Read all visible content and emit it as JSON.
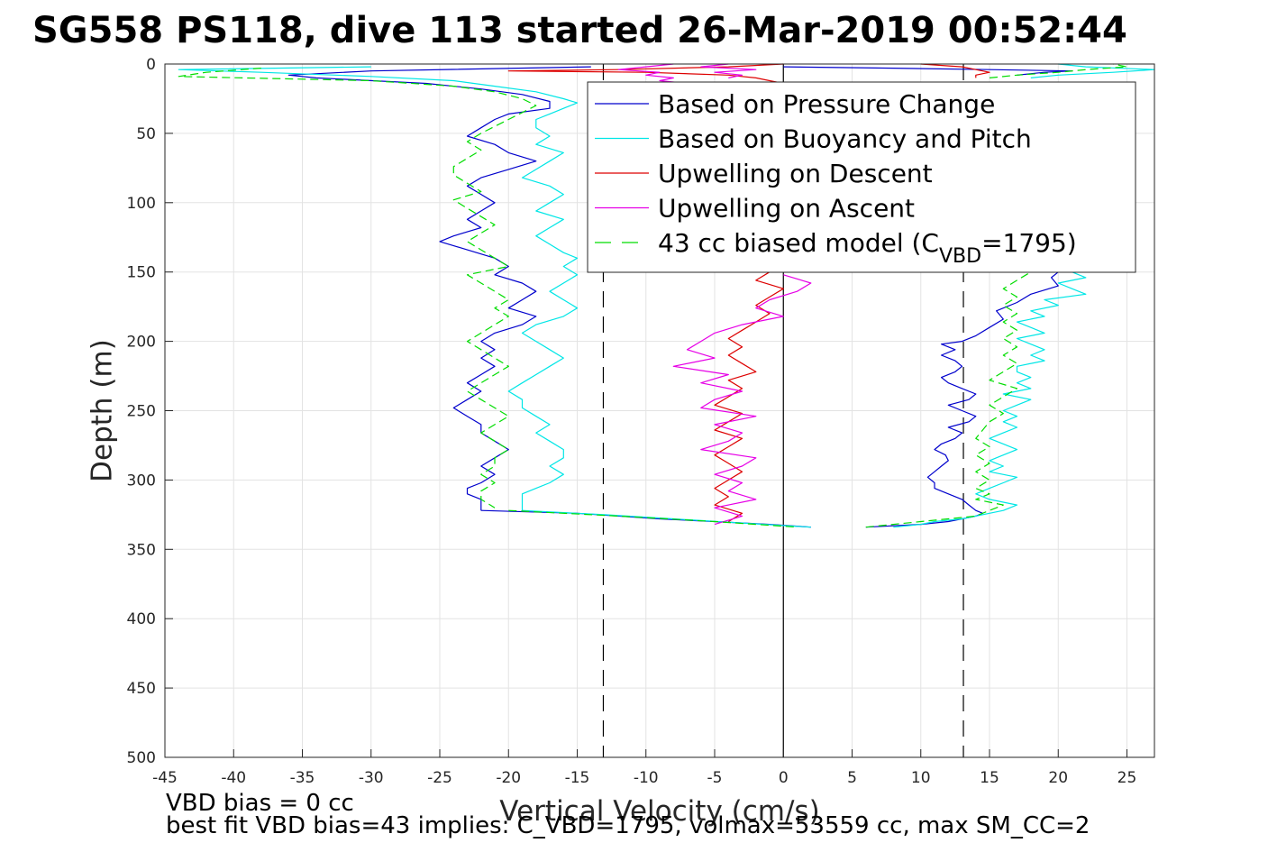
{
  "chart_data": {
    "type": "line",
    "title": "SG558 PS118, dive 113 started 26-Mar-2019 00:52:44",
    "xlabel": "Vertical Velocity (cm/s)",
    "ylabel": "Depth (m)",
    "xlim": [
      -45,
      27
    ],
    "ylim": [
      0,
      500
    ],
    "y_reversed": true,
    "grid": true,
    "legend_position": "top-right",
    "xticks": [
      -45,
      -40,
      -35,
      -30,
      -25,
      -20,
      -15,
      -10,
      -5,
      0,
      5,
      10,
      15,
      20,
      25
    ],
    "yticks": [
      0,
      50,
      100,
      150,
      200,
      250,
      300,
      350,
      400,
      450,
      500
    ],
    "reference_lines": [
      {
        "x": -13.1,
        "style": "dashed",
        "color": "#000000"
      },
      {
        "x": 0,
        "style": "solid",
        "color": "#000000"
      },
      {
        "x": 13.1,
        "style": "dashed",
        "color": "#000000"
      }
    ],
    "series": [
      {
        "name": "Based on Pressure Change",
        "color": "#0000cc",
        "dash": "solid",
        "descent": {
          "depth": [
            2,
            5,
            8,
            10,
            14,
            18,
            22,
            27,
            32,
            36,
            40,
            46,
            52,
            58,
            64,
            70,
            76,
            82,
            88,
            94,
            100,
            106,
            112,
            118,
            124,
            128,
            134,
            140,
            146,
            152,
            158,
            164,
            170,
            176,
            182,
            188,
            194,
            200,
            206,
            212,
            218,
            224,
            230,
            236,
            242,
            248,
            254,
            260,
            266,
            272,
            278,
            284,
            290,
            296,
            302,
            306,
            310,
            314,
            318,
            322
          ],
          "v": [
            -14,
            -30,
            -36,
            -34,
            -26,
            -22,
            -19,
            -17,
            -17,
            -20,
            -21,
            -22,
            -23,
            -21,
            -20,
            -18,
            -20,
            -22,
            -23,
            -22,
            -21,
            -22,
            -23,
            -22,
            -24,
            -25,
            -23,
            -21,
            -20,
            -21,
            -19,
            -18,
            -19,
            -20,
            -18,
            -19,
            -21,
            -22,
            -21,
            -22,
            -21,
            -22,
            -23,
            -22,
            -23,
            -24,
            -23,
            -22,
            -22,
            -21,
            -20,
            -21,
            -22,
            -21,
            -22,
            -23,
            -23,
            -22,
            -22,
            -22
          ]
        },
        "bottom": {
          "depth": [
            322,
            324,
            326,
            328,
            330,
            332,
            334
          ],
          "v": [
            -22,
            -15,
            -12,
            -9,
            -5,
            -1,
            2
          ]
        },
        "ascent": {
          "depth": [
            334,
            332,
            330,
            328,
            326,
            324,
            322,
            318,
            314,
            310,
            306,
            302,
            298,
            294,
            290,
            286,
            282,
            278,
            274,
            270,
            266,
            262,
            258,
            254,
            250,
            246,
            242,
            238,
            234,
            230,
            226,
            222,
            218,
            214,
            210,
            206,
            202,
            200,
            196,
            190,
            184,
            178,
            172,
            166,
            160,
            154,
            150
          ],
          "v": [
            6,
            10,
            12,
            13,
            14,
            14.5,
            14,
            13.5,
            13,
            12,
            11,
            11,
            10.5,
            11,
            11.5,
            12,
            11.8,
            11,
            11.5,
            12.5,
            13,
            12,
            13.5,
            14,
            13,
            12,
            13.5,
            14,
            13,
            12,
            11.5,
            12.5,
            13,
            12.5,
            11.5,
            12.5,
            11.5,
            13,
            14,
            15,
            16,
            15.5,
            17,
            18,
            20,
            19.5,
            20
          ]
        },
        "surface": {
          "depth": [
            8,
            6,
            5,
            4,
            3,
            2
          ],
          "v": [
            17,
            19,
            21,
            15,
            8,
            0
          ]
        }
      },
      {
        "name": "Based on Buoyancy and Pitch",
        "color": "#00e6e6",
        "dash": "solid",
        "descent": {
          "depth": [
            2,
            4,
            6,
            9,
            12,
            16,
            20,
            25,
            28,
            32,
            36,
            40,
            46,
            52,
            58,
            64,
            70,
            76,
            82,
            88,
            94,
            100,
            106,
            112,
            118,
            124,
            130,
            136,
            140,
            146,
            152,
            158,
            164,
            170,
            176,
            182,
            188,
            194,
            200,
            206,
            212,
            218,
            224,
            230,
            236,
            242,
            248,
            254,
            260,
            266,
            272,
            278,
            284,
            290,
            296,
            302,
            306,
            310,
            314,
            318,
            322
          ],
          "v": [
            -30,
            -44,
            -38,
            -30,
            -24,
            -21,
            -18,
            -16,
            -15,
            -16,
            -17,
            -18,
            -18,
            -17,
            -18,
            -16,
            -17,
            -18,
            -19,
            -17,
            -16,
            -17,
            -18,
            -16,
            -17,
            -18,
            -17,
            -16,
            -15,
            -16,
            -15,
            -16,
            -17,
            -16,
            -15,
            -16,
            -18,
            -19,
            -18,
            -17,
            -16,
            -17,
            -18,
            -19,
            -20,
            -19,
            -19,
            -18,
            -17,
            -18,
            -17,
            -16,
            -16,
            -17,
            -16,
            -17,
            -18,
            -19,
            -19,
            -19,
            -19
          ]
        },
        "bottom": {
          "depth": [
            322,
            325,
            328,
            331,
            334
          ],
          "v": [
            -19,
            -13,
            -8,
            -3,
            2
          ]
        },
        "ascent": {
          "depth": [
            334,
            332,
            330,
            328,
            326,
            324,
            322,
            318,
            314,
            310,
            306,
            302,
            298,
            294,
            290,
            286,
            282,
            278,
            274,
            270,
            266,
            262,
            258,
            254,
            250,
            246,
            242,
            238,
            234,
            230,
            226,
            222,
            218,
            214,
            210,
            206,
            202,
            198,
            194,
            190,
            186,
            182,
            178,
            174,
            170,
            166,
            162,
            158,
            154,
            150
          ],
          "v": [
            8,
            10,
            11,
            13,
            14,
            15,
            16,
            17,
            15,
            14,
            15,
            16,
            17,
            15,
            16,
            15,
            16,
            17,
            16,
            15,
            16,
            17,
            16,
            17,
            16,
            17,
            18,
            16,
            18,
            17,
            18,
            17,
            17,
            19,
            18,
            19,
            18,
            17,
            19,
            18,
            17,
            19,
            18,
            20,
            19,
            22,
            21,
            20,
            22,
            21
          ]
        },
        "surface": {
          "depth": [
            10,
            8,
            6,
            4,
            2,
            0
          ],
          "v": [
            18,
            20,
            24,
            27,
            22,
            20
          ]
        }
      },
      {
        "name": "Upwelling on Descent",
        "color": "#dd0000",
        "dash": "solid",
        "descent": {
          "depth": [
            0,
            2,
            4,
            5,
            6,
            8,
            10,
            12,
            14,
            16,
            18,
            20
          ],
          "v": [
            0,
            -4,
            -12,
            -20,
            -10,
            -4,
            -2,
            -1,
            0,
            1,
            0,
            1
          ]
        },
        "bottom": {
          "depth": [
            150,
            156,
            162,
            168,
            174,
            180,
            186,
            192,
            198,
            204,
            210,
            216,
            222,
            228,
            234,
            240,
            246,
            252,
            258,
            264,
            270,
            276,
            282,
            288,
            294,
            300,
            306,
            312,
            318,
            324,
            330
          ],
          "v": [
            -1,
            -2,
            0,
            -1,
            -2,
            -1,
            -2,
            -3,
            -4,
            -3,
            -4,
            -3,
            -2,
            -4,
            -3,
            -4,
            -5,
            -3,
            -4,
            -5,
            -3,
            -4,
            -5,
            -4,
            -3,
            -4,
            -5,
            -4,
            -5,
            -3,
            -4
          ]
        },
        "ascent": {
          "depth": [
            0,
            2,
            4,
            6,
            8,
            10
          ],
          "v": [
            10,
            13,
            14,
            15,
            14,
            14
          ]
        }
      },
      {
        "name": "Upwelling on Ascent",
        "color": "#e600e6",
        "dash": "solid",
        "descent": {
          "depth": [
            0,
            2,
            4,
            6,
            8,
            10,
            12,
            14
          ],
          "v": [
            -8,
            -10,
            -12,
            -9,
            -10,
            -8,
            -9,
            -7
          ]
        },
        "bottom": {
          "depth": [
            152,
            158,
            164,
            170,
            176,
            182,
            188,
            194,
            200,
            206,
            212,
            218,
            224,
            230,
            236,
            242,
            248,
            254,
            260,
            266,
            272,
            278,
            284,
            290,
            296,
            302,
            308,
            314,
            320,
            326,
            332
          ],
          "v": [
            0,
            2,
            1,
            -1,
            -2,
            0,
            -3,
            -5,
            -6,
            -7,
            -5,
            -8,
            -4,
            -6,
            -3,
            -5,
            -6,
            -2,
            -5,
            -3,
            -4,
            -6,
            -2,
            -3,
            -5,
            -3,
            -4,
            -2,
            -5,
            -3,
            -5
          ]
        },
        "ascent": {
          "depth": [
            0,
            2,
            4,
            6,
            8,
            10
          ],
          "v": [
            -4,
            -6,
            -2,
            -5,
            -3,
            -4
          ]
        }
      },
      {
        "name": "43 cc biased model (C_VBD=1795)",
        "color": "#00dd00",
        "dash": "dashed",
        "descent": {
          "depth": [
            3,
            6,
            9,
            12,
            16,
            20,
            25,
            30,
            35,
            40,
            45,
            50,
            56,
            62,
            68,
            74,
            80,
            86,
            92,
            98,
            104,
            110,
            116,
            122,
            128,
            134,
            140,
            146,
            152,
            158,
            164,
            170,
            176,
            182,
            188,
            194,
            200,
            206,
            212,
            218,
            224,
            230,
            236,
            242,
            248,
            254,
            260,
            266,
            272,
            278,
            284,
            290,
            296,
            302,
            308,
            314,
            320
          ],
          "v": [
            -38,
            -42,
            -44,
            -30,
            -24,
            -21,
            -19,
            -18,
            -19,
            -20,
            -21,
            -22,
            -23,
            -22,
            -23,
            -24,
            -24,
            -23,
            -22,
            -24,
            -23,
            -22,
            -21,
            -22,
            -23,
            -22,
            -21,
            -20,
            -23,
            -22,
            -21,
            -20,
            -21,
            -20,
            -21,
            -22,
            -23,
            -22,
            -21,
            -20,
            -21,
            -22,
            -23,
            -22,
            -21,
            -20,
            -21,
            -22,
            -21,
            -20,
            -21,
            -21,
            -22,
            -21,
            -22,
            -22,
            -21
          ]
        },
        "bottom": {
          "depth": [
            322,
            326,
            330,
            334
          ],
          "v": [
            -20,
            -12,
            -5,
            1
          ]
        },
        "ascent": {
          "depth": [
            334,
            332,
            330,
            328,
            326,
            322,
            318,
            314,
            310,
            306,
            300,
            294,
            288,
            282,
            276,
            270,
            264,
            258,
            252,
            246,
            240,
            234,
            228,
            222,
            216,
            210,
            204,
            198,
            192,
            186,
            180,
            174,
            168,
            162,
            156,
            150
          ],
          "v": [
            6,
            8,
            10,
            12,
            14,
            15,
            16,
            14,
            15,
            14,
            15,
            14,
            15,
            14,
            15,
            14,
            14.5,
            15,
            16,
            15,
            16,
            17,
            15,
            16,
            17,
            16,
            17,
            16,
            17,
            16,
            17,
            16,
            17,
            16,
            17,
            18
          ]
        },
        "surface": {
          "depth": [
            10,
            8,
            6,
            4,
            2,
            0
          ],
          "v": [
            15,
            17,
            20,
            22,
            25,
            24
          ]
        }
      }
    ]
  },
  "notes": {
    "line1": "VBD bias = 0 cc",
    "line2": "best fit VBD bias=43 implies: C_VBD=1795, volmax=53559 cc, max SM_CC=2"
  },
  "legend": {
    "entries": [
      {
        "label": "Based on Pressure Change",
        "sub": "",
        "tail": ""
      },
      {
        "label": "Based on Buoyancy and Pitch",
        "sub": "",
        "tail": ""
      },
      {
        "label": "Upwelling on Descent",
        "sub": "",
        "tail": ""
      },
      {
        "label": "Upwelling on Ascent",
        "sub": "",
        "tail": ""
      },
      {
        "label": "43 cc biased model (C",
        "sub": "VBD",
        "tail": "=1795)"
      }
    ]
  }
}
